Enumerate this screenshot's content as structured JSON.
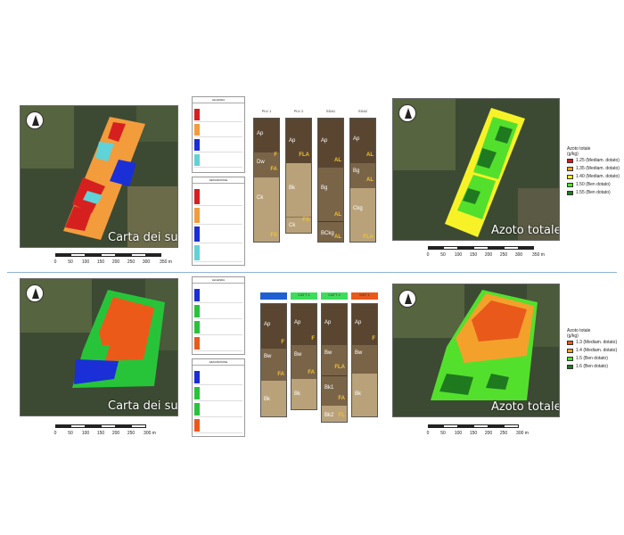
{
  "panels": [
    {
      "soil_map_title": "Carta dei suoli",
      "nitrogen_map_title": "Azoto totale",
      "scale_labels": [
        "0",
        "50",
        "100",
        "150",
        "200",
        "250",
        "300",
        "350 m"
      ],
      "legend_header_1": "LEGENDA",
      "legend_header_2": "DESCRIZIONE",
      "profiles": [
        {
          "name": "PLV 1",
          "horizons": [
            {
              "label": "Ap",
              "code": ""
            },
            {
              "label": "Dw",
              "code": "F"
            },
            {
              "label": "",
              "code": "FA"
            },
            {
              "label": "Ck",
              "code": "FS"
            }
          ]
        },
        {
          "name": "PLV 2",
          "horizons": [
            {
              "label": "Ap",
              "code": "FLA"
            },
            {
              "label": "Bk",
              "code": ""
            },
            {
              "label": "Ck",
              "code": "FS"
            }
          ]
        },
        {
          "name": "SSA1",
          "horizons": [
            {
              "label": "Ap",
              "code": "AL"
            },
            {
              "label": "Bg",
              "code": "AL"
            },
            {
              "label": "BCkg",
              "code": "AL"
            }
          ]
        },
        {
          "name": "SSA2",
          "horizons": [
            {
              "label": "Ap",
              "code": "AL"
            },
            {
              "label": "Bg",
              "code": "AL"
            },
            {
              "label": "Ckg",
              "code": "FLA"
            }
          ]
        }
      ],
      "nitrogen_legend": {
        "title": "Azoto totale",
        "unit": "(g/kg)",
        "items": [
          {
            "label": "1.25 (Mediam. dotato)",
            "color": "#d7191c"
          },
          {
            "label": "1.35 (Mediam. dotato)",
            "color": "#f4a12b"
          },
          {
            "label": "1.40 (Mediam. dotato)",
            "color": "#f7f227"
          },
          {
            "label": "1.50 (Ben dotato)",
            "color": "#53e02d"
          },
          {
            "label": "1.55 (Ben dotato)",
            "color": "#1f7a1f"
          }
        ]
      }
    },
    {
      "soil_map_title": "Carta dei suoli",
      "nitrogen_map_title": "Azoto totale",
      "scale_labels": [
        "0",
        "50",
        "100",
        "150",
        "200",
        "250",
        "300 m"
      ],
      "legend_header_1": "LEGENDA",
      "legend_header_2": "DESCRIZIONE",
      "profiles": [
        {
          "name": "",
          "horizons": [
            {
              "label": "Ap",
              "code": "F"
            },
            {
              "label": "Bw",
              "code": "FA"
            },
            {
              "label": "Bk",
              "code": ""
            }
          ]
        },
        {
          "name": "CATT 1",
          "horizons": [
            {
              "label": "Ap",
              "code": "F"
            },
            {
              "label": "Bw",
              "code": "FA"
            },
            {
              "label": "Bk",
              "code": ""
            }
          ]
        },
        {
          "name": "CATT 2",
          "horizons": [
            {
              "label": "Ap",
              "code": ""
            },
            {
              "label": "Bw",
              "code": "FLA"
            },
            {
              "label": "Bk1",
              "code": "FA"
            },
            {
              "label": "Bk2",
              "code": "FL"
            }
          ]
        },
        {
          "name": "MAT 1",
          "horizons": [
            {
              "label": "Ap",
              "code": "F"
            },
            {
              "label": "Bw",
              "code": ""
            },
            {
              "label": "Bk",
              "code": ""
            }
          ]
        }
      ],
      "nitrogen_legend": {
        "title": "Azoto totale",
        "unit": "(g/kg)",
        "items": [
          {
            "label": "1.3 (Mediam. dotato)",
            "color": "#e8591a"
          },
          {
            "label": "1.4 (Mediam. dotato)",
            "color": "#f4a12b"
          },
          {
            "label": "1.5 (Ben dotato)",
            "color": "#53e02d"
          },
          {
            "label": "1.6 (Ben dotato)",
            "color": "#1f7a1f"
          }
        ]
      }
    }
  ],
  "colors": {
    "soil_red": "#d62020",
    "soil_orange": "#f39c3c",
    "soil_blue": "#1a2fd6",
    "soil_cyan": "#5fd3d8",
    "soil_green": "#27c43a",
    "soil_dark_orange": "#ec5a1a",
    "horizon_dark": "#5a4630",
    "horizon_mid": "#7a6448",
    "horizon_light": "#b9a27a",
    "profile_blue": "#1f5fd1",
    "profile_green": "#3ddc5a",
    "profile_orange": "#e8591a"
  }
}
